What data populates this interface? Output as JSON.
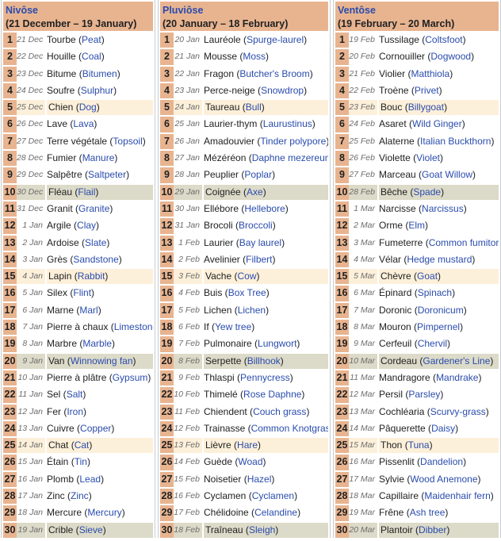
{
  "colors": {
    "header": "#e8b490",
    "link": "#2a4cad",
    "fifth_day": "#fdf0da",
    "tenth_day": "#dcdac8"
  },
  "months": [
    {
      "name": "Nivôse",
      "range": "(21 December – 19 January)",
      "days": [
        [
          "21 Dec",
          "Tourbe",
          "Peat"
        ],
        [
          "22 Dec",
          "Houille",
          "Coal"
        ],
        [
          "23 Dec",
          "Bitume",
          "Bitumen"
        ],
        [
          "24 Dec",
          "Soufre",
          "Sulphur"
        ],
        [
          "25 Dec",
          "Chien",
          "Dog"
        ],
        [
          "26 Dec",
          "Lave",
          "Lava"
        ],
        [
          "27 Dec",
          "Terre végétale",
          "Topsoil"
        ],
        [
          "28 Dec",
          "Fumier",
          "Manure"
        ],
        [
          "29 Dec",
          "Salpêtre",
          "Saltpeter"
        ],
        [
          "30 Dec",
          "Fléau",
          "Flail"
        ],
        [
          "31 Dec",
          "Granit",
          "Granite"
        ],
        [
          "1 Jan",
          "Argile",
          "Clay"
        ],
        [
          "2 Jan",
          "Ardoise",
          "Slate"
        ],
        [
          "3 Jan",
          "Grès",
          "Sandstone"
        ],
        [
          "4 Jan",
          "Lapin",
          "Rabbit"
        ],
        [
          "5 Jan",
          "Silex",
          "Flint"
        ],
        [
          "6 Jan",
          "Marne",
          "Marl"
        ],
        [
          "7 Jan",
          "Pierre à chaux",
          "Limestone"
        ],
        [
          "8 Jan",
          "Marbre",
          "Marble"
        ],
        [
          "9 Jan",
          "Van",
          "Winnowing fan"
        ],
        [
          "10 Jan",
          "Pierre à plâtre",
          "Gypsum"
        ],
        [
          "11 Jan",
          "Sel",
          "Salt"
        ],
        [
          "12 Jan",
          "Fer",
          "Iron"
        ],
        [
          "13 Jan",
          "Cuivre",
          "Copper"
        ],
        [
          "14 Jan",
          "Chat",
          "Cat"
        ],
        [
          "15 Jan",
          "Étain",
          "Tin"
        ],
        [
          "16 Jan",
          "Plomb",
          "Lead"
        ],
        [
          "17 Jan",
          "Zinc",
          "Zinc"
        ],
        [
          "18 Jan",
          "Mercure",
          "Mercury"
        ],
        [
          "19 Jan",
          "Crible",
          "Sieve"
        ]
      ]
    },
    {
      "name": "Pluviôse",
      "range": "(20 January – 18 February)",
      "days": [
        [
          "20 Jan",
          "Lauréole",
          "Spurge-laurel"
        ],
        [
          "21 Jan",
          "Mousse",
          "Moss"
        ],
        [
          "22 Jan",
          "Fragon",
          "Butcher's Broom"
        ],
        [
          "23 Jan",
          "Perce-neige",
          "Snowdrop"
        ],
        [
          "24 Jan",
          "Taureau",
          "Bull"
        ],
        [
          "25 Jan",
          "Laurier-thym",
          "Laurustinus"
        ],
        [
          "26 Jan",
          "Amadouvier",
          "Tinder polypore"
        ],
        [
          "27 Jan",
          "Mézéréon",
          "Daphne mezereum"
        ],
        [
          "28 Jan",
          "Peuplier",
          "Poplar"
        ],
        [
          "29 Jan",
          "Coignée",
          "Axe"
        ],
        [
          "30 Jan",
          "Ellébore",
          "Hellebore"
        ],
        [
          "31 Jan",
          "Brocoli",
          "Broccoli"
        ],
        [
          "1 Feb",
          "Laurier",
          "Bay laurel"
        ],
        [
          "2 Feb",
          "Avelinier",
          "Filbert"
        ],
        [
          "3 Feb",
          "Vache",
          "Cow"
        ],
        [
          "4 Feb",
          "Buis",
          "Box Tree"
        ],
        [
          "5 Feb",
          "Lichen",
          "Lichen"
        ],
        [
          "6 Feb",
          "If",
          "Yew tree"
        ],
        [
          "7 Feb",
          "Pulmonaire",
          "Lungwort"
        ],
        [
          "8 Feb",
          "Serpette",
          "Billhook"
        ],
        [
          "9 Feb",
          "Thlaspi",
          "Pennycress"
        ],
        [
          "10 Feb",
          "Thimelé",
          "Rose Daphne"
        ],
        [
          "11 Feb",
          "Chiendent",
          "Couch grass"
        ],
        [
          "12 Feb",
          "Trainasse",
          "Common Knotgrass"
        ],
        [
          "13 Feb",
          "Lièvre",
          "Hare"
        ],
        [
          "14 Feb",
          "Guède",
          "Woad"
        ],
        [
          "15 Feb",
          "Noisetier",
          "Hazel"
        ],
        [
          "16 Feb",
          "Cyclamen",
          "Cyclamen"
        ],
        [
          "17 Feb",
          "Chélidoine",
          "Celandine"
        ],
        [
          "18 Feb",
          "Traîneau",
          "Sleigh"
        ]
      ]
    },
    {
      "name": "Ventôse",
      "range": "(19 February – 20 March)",
      "days": [
        [
          "19 Feb",
          "Tussilage",
          "Coltsfoot"
        ],
        [
          "20 Feb",
          "Cornouiller",
          "Dogwood"
        ],
        [
          "21 Feb",
          "Violier",
          "Matthiola"
        ],
        [
          "22 Feb",
          "Troène",
          "Privet"
        ],
        [
          "23 Feb",
          "Bouc",
          "Billygoat"
        ],
        [
          "24 Feb",
          "Asaret",
          "Wild Ginger"
        ],
        [
          "25 Feb",
          "Alaterne",
          "Italian Buckthorn"
        ],
        [
          "26 Feb",
          "Violette",
          "Violet"
        ],
        [
          "27 Feb",
          "Marceau",
          "Goat Willow"
        ],
        [
          "28 Feb",
          "Bêche",
          "Spade"
        ],
        [
          "1 Mar",
          "Narcisse",
          "Narcissus"
        ],
        [
          "2 Mar",
          "Orme",
          "Elm"
        ],
        [
          "3 Mar",
          "Fumeterre",
          "Common fumitory"
        ],
        [
          "4 Mar",
          "Vélar",
          "Hedge mustard"
        ],
        [
          "5 Mar",
          "Chèvre",
          "Goat"
        ],
        [
          "6 Mar",
          "Épinard",
          "Spinach"
        ],
        [
          "7 Mar",
          "Doronic",
          "Doronicum"
        ],
        [
          "8 Mar",
          "Mouron",
          "Pimpernel"
        ],
        [
          "9 Mar",
          "Cerfeuil",
          "Chervil"
        ],
        [
          "10 Mar",
          "Cordeau",
          "Gardener's Line"
        ],
        [
          "11 Mar",
          "Mandragore",
          "Mandrake"
        ],
        [
          "12 Mar",
          "Persil",
          "Parsley"
        ],
        [
          "13 Mar",
          "Cochléaria",
          "Scurvy-grass"
        ],
        [
          "14 Mar",
          "Pâquerette",
          "Daisy"
        ],
        [
          "15 Mar",
          "Thon",
          "Tuna"
        ],
        [
          "16 Mar",
          "Pissenlit",
          "Dandelion"
        ],
        [
          "17 Mar",
          "Sylvie",
          "Wood Anemone"
        ],
        [
          "18 Mar",
          "Capillaire",
          "Maidenhair fern"
        ],
        [
          "19 Mar",
          "Frêne",
          "Ash tree"
        ],
        [
          "20 Mar",
          "Plantoir",
          "Dibber"
        ]
      ]
    }
  ]
}
